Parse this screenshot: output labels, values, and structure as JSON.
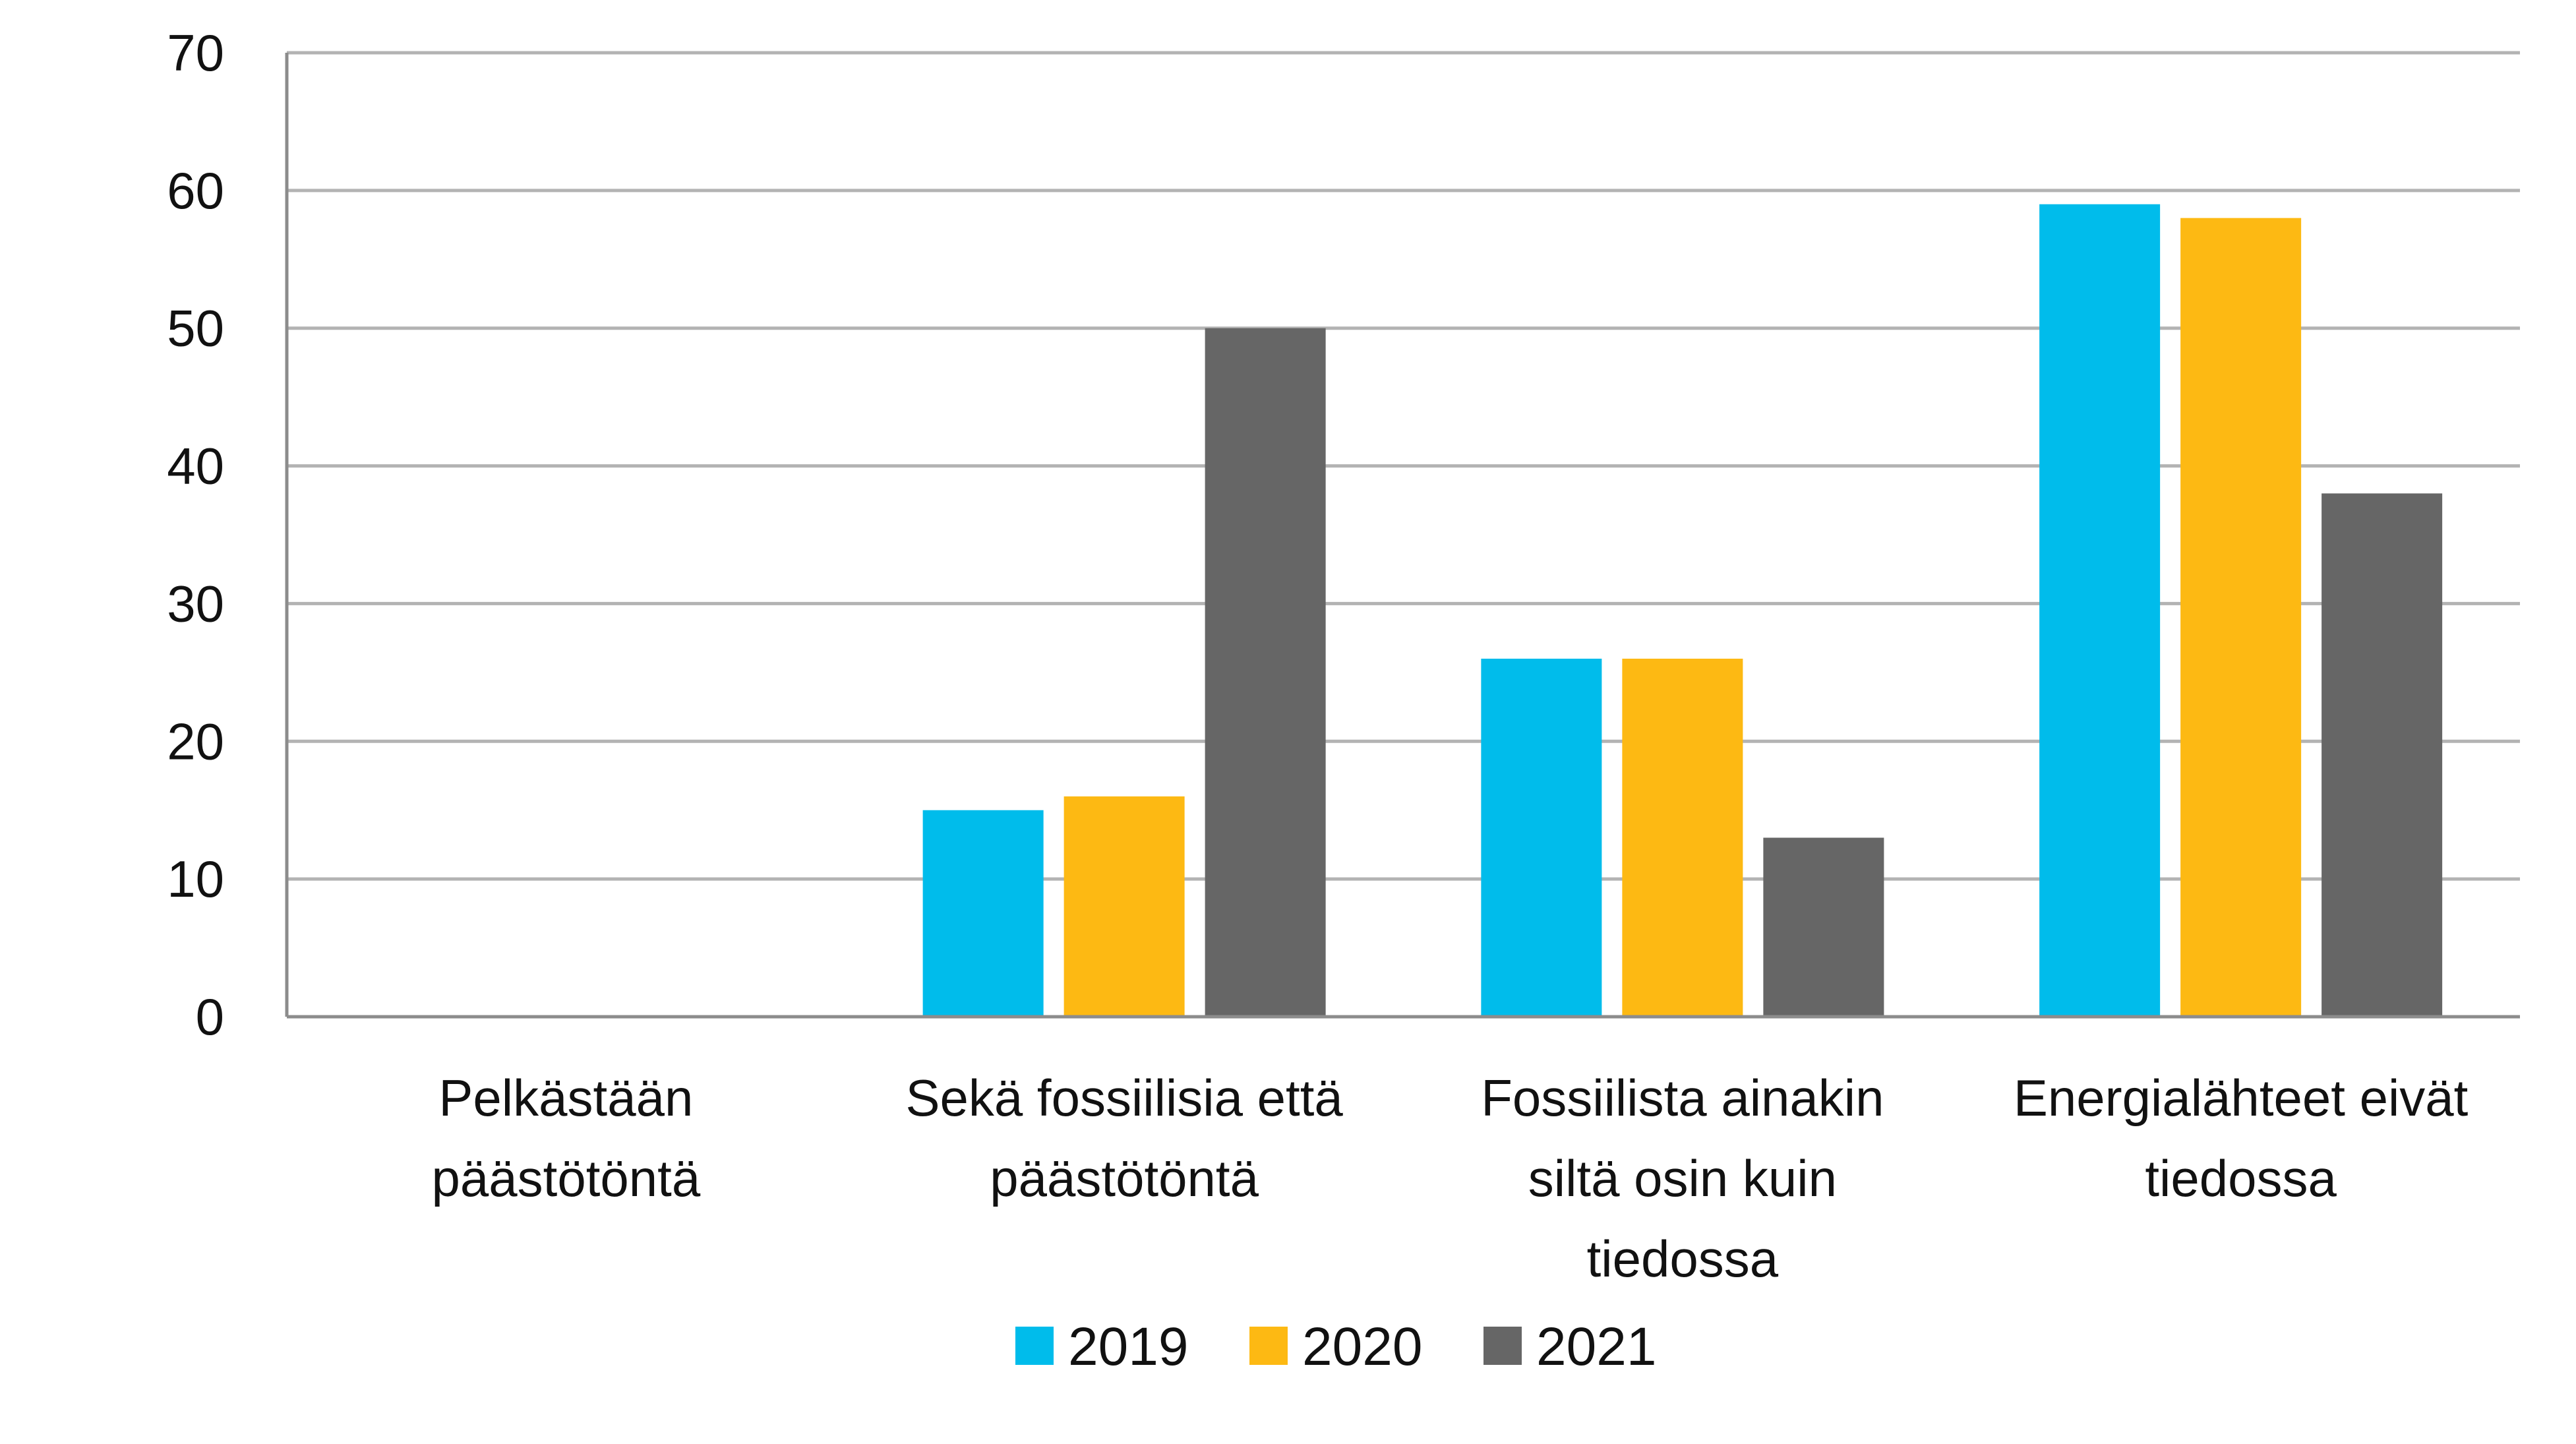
{
  "chart_data": {
    "type": "bar",
    "title": "",
    "xlabel": "",
    "ylabel": "",
    "ylim": [
      0,
      70
    ],
    "yticks": [
      0,
      10,
      20,
      30,
      40,
      50,
      60,
      70
    ],
    "grid": true,
    "legend_position": "bottom",
    "categories": [
      [
        "Pelkästään",
        "päästötöntä"
      ],
      [
        "Sekä fossiilisia että",
        "päästötöntä"
      ],
      [
        "Fossiilista ainakin",
        "siltä osin kuin",
        "tiedossa"
      ],
      [
        "Energialähteet eivät",
        "tiedossa"
      ]
    ],
    "series": [
      {
        "name": "2019",
        "color": "#00BCEB",
        "values": [
          0,
          15,
          26,
          59
        ]
      },
      {
        "name": "2020",
        "color": "#FDB913",
        "values": [
          0,
          16,
          26,
          58
        ]
      },
      {
        "name": "2021",
        "color": "#666666",
        "values": [
          0,
          50,
          13,
          38
        ]
      }
    ]
  }
}
